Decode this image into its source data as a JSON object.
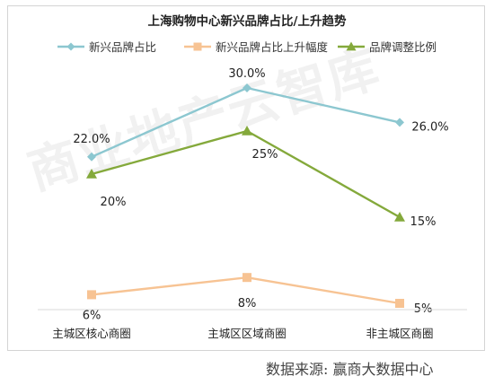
{
  "chart_data": {
    "type": "line",
    "title": "上海购物中心新兴品牌占比/上升趋势",
    "categories": [
      "主城区核心商圈",
      "主城区区域商圈",
      "非主城区商圈"
    ],
    "ylim": [
      0,
      35
    ],
    "grid": false,
    "legend_position": "top",
    "series": [
      {
        "name": "新兴品牌占比",
        "values": [
          22.0,
          30.0,
          26.0
        ],
        "labels": [
          "22.0%",
          "30.0%",
          "26.0%"
        ],
        "color": "#8cc7d0",
        "marker": "diamond"
      },
      {
        "name": "新兴品牌占比上升幅度",
        "values": [
          6,
          8,
          5
        ],
        "labels": [
          "6%",
          "8%",
          "5%"
        ],
        "color": "#f7c393",
        "marker": "square"
      },
      {
        "name": "品牌调整比例",
        "values": [
          20,
          25,
          15
        ],
        "labels": [
          "20%",
          "25%",
          "15%"
        ],
        "color": "#84a93b",
        "marker": "triangle"
      }
    ]
  },
  "watermark": "商业地产云智库",
  "source": "数据来源: 赢商大数据中心"
}
